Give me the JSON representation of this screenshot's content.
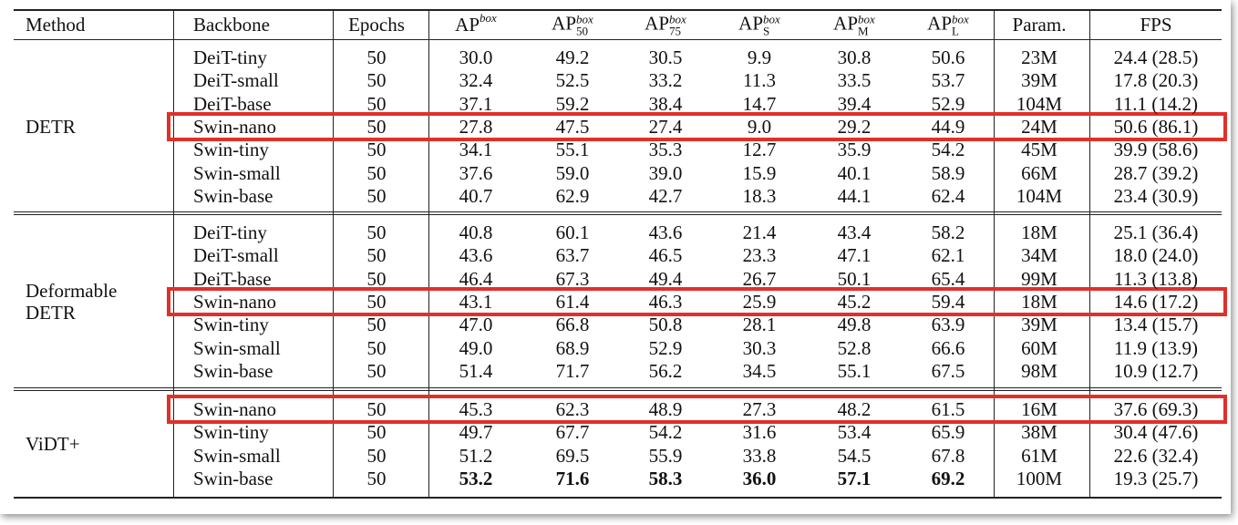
{
  "header": [
    {
      "text": "Method"
    },
    {
      "text": "Backbone"
    },
    {
      "text": "Epochs"
    },
    {
      "text": "AP",
      "sup": "box"
    },
    {
      "text": "AP",
      "sup": "box",
      "sub": "50"
    },
    {
      "text": "AP",
      "sup": "box",
      "sub": "75"
    },
    {
      "text": "AP",
      "sup": "box",
      "sub": "S"
    },
    {
      "text": "AP",
      "sup": "box",
      "sub": "M"
    },
    {
      "text": "AP",
      "sup": "box",
      "sub": "L"
    },
    {
      "text": "Param."
    },
    {
      "text": "FPS"
    }
  ],
  "groups": [
    {
      "method": "DETR",
      "highlight": 3,
      "rows": [
        [
          "DeiT-tiny",
          "50",
          "30.0",
          "49.2",
          "30.5",
          "9.9",
          "30.8",
          "50.6",
          "23M",
          "24.4 (28.5)"
        ],
        [
          "DeiT-small",
          "50",
          "32.4",
          "52.5",
          "33.2",
          "11.3",
          "33.5",
          "53.7",
          "39M",
          "17.8 (20.3)"
        ],
        [
          "DeiT-base",
          "50",
          "37.1",
          "59.2",
          "38.4",
          "14.7",
          "39.4",
          "52.9",
          "104M",
          "11.1 (14.2)"
        ],
        [
          "Swin-nano",
          "50",
          "27.8",
          "47.5",
          "27.4",
          "9.0",
          "29.2",
          "44.9",
          "24M",
          "50.6 (86.1)"
        ],
        [
          "Swin-tiny",
          "50",
          "34.1",
          "55.1",
          "35.3",
          "12.7",
          "35.9",
          "54.2",
          "45M",
          "39.9 (58.6)"
        ],
        [
          "Swin-small",
          "50",
          "37.6",
          "59.0",
          "39.0",
          "15.9",
          "40.1",
          "58.9",
          "66M",
          "28.7 (39.2)"
        ],
        [
          "Swin-base",
          "50",
          "40.7",
          "62.9",
          "42.7",
          "18.3",
          "44.1",
          "62.4",
          "104M",
          "23.4 (30.9)"
        ]
      ]
    },
    {
      "method": "Deformable DETR",
      "highlight": 3,
      "rows": [
        [
          "DeiT-tiny",
          "50",
          "40.8",
          "60.1",
          "43.6",
          "21.4",
          "43.4",
          "58.2",
          "18M",
          "25.1 (36.4)"
        ],
        [
          "DeiT-small",
          "50",
          "43.6",
          "63.7",
          "46.5",
          "23.3",
          "47.1",
          "62.1",
          "34M",
          "18.0 (24.0)"
        ],
        [
          "DeiT-base",
          "50",
          "46.4",
          "67.3",
          "49.4",
          "26.7",
          "50.1",
          "65.4",
          "99M",
          "11.3 (13.8)"
        ],
        [
          "Swin-nano",
          "50",
          "43.1",
          "61.4",
          "46.3",
          "25.9",
          "45.2",
          "59.4",
          "18M",
          "14.6 (17.2)"
        ],
        [
          "Swin-tiny",
          "50",
          "47.0",
          "66.8",
          "50.8",
          "28.1",
          "49.8",
          "63.9",
          "39M",
          "13.4 (15.7)"
        ],
        [
          "Swin-small",
          "50",
          "49.0",
          "68.9",
          "52.9",
          "30.3",
          "52.8",
          "66.6",
          "60M",
          "11.9 (13.9)"
        ],
        [
          "Swin-base",
          "50",
          "51.4",
          "71.7",
          "56.2",
          "34.5",
          "55.1",
          "67.5",
          "98M",
          "10.9 (12.7)"
        ]
      ]
    },
    {
      "method": "ViDT+",
      "highlight": 0,
      "rows": [
        [
          "Swin-nano",
          "50",
          "45.3",
          "62.3",
          "48.9",
          "27.3",
          "48.2",
          "61.5",
          "16M",
          "37.6 (69.3)"
        ],
        [
          "Swin-tiny",
          "50",
          "49.7",
          "67.7",
          "54.2",
          "31.6",
          "53.4",
          "65.9",
          "38M",
          "30.4 (47.6)"
        ],
        [
          "Swin-small",
          "50",
          "51.2",
          "69.5",
          "55.9",
          "33.8",
          "54.5",
          "67.8",
          "61M",
          "22.6 (32.4)"
        ],
        [
          "Swin-base",
          "50",
          {
            "text": "53.2",
            "bold": true
          },
          {
            "text": "71.6",
            "bold": true
          },
          {
            "text": "58.3",
            "bold": true
          },
          {
            "text": "36.0",
            "bold": true
          },
          {
            "text": "57.1",
            "bold": true
          },
          {
            "text": "69.2",
            "bold": true
          },
          "100M",
          "19.3 (25.7)"
        ]
      ]
    }
  ]
}
